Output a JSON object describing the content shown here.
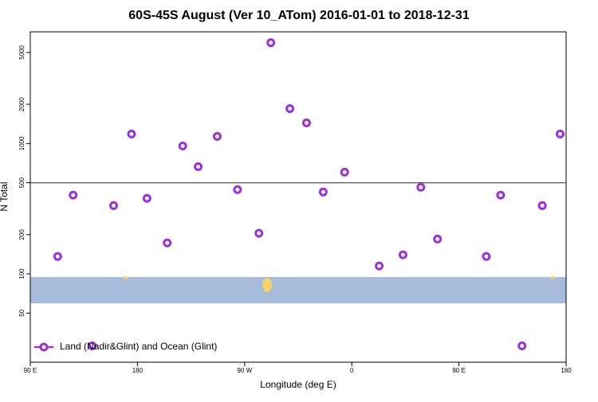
{
  "chart_data": {
    "type": "scatter",
    "title": "60S-45S August (Ver 10_ATom)   2016-01-01 to 2018-12-31",
    "x_label": "Longitude (deg E)",
    "y_label": "N Total",
    "log_y": true,
    "color": "#9b30d9",
    "xlim": [
      90,
      540
    ],
    "xticks": [
      {
        "value": 90,
        "label": "90 E"
      },
      180,
      {
        "value": 270,
        "label": "90 W"
      },
      {
        "value": 360,
        "label": "0"
      },
      {
        "value": 450,
        "label": "90 E"
      },
      {
        "value": 540,
        "label": "180"
      }
    ],
    "ylim": [
      21,
      7200
    ],
    "yticks": [
      50,
      100,
      200,
      500,
      1000,
      2000,
      5000
    ],
    "reference_line": 500,
    "legend": "bottom-left",
    "series": [
      {
        "name": "Land (Nadir&Glint) and Ocean (Glint)",
        "color": "#9b30d9",
        "x": [
          113,
          126,
          142,
          160,
          175,
          188,
          205,
          218,
          231,
          247,
          264,
          282,
          292,
          308,
          322,
          336,
          354,
          383,
          403,
          418,
          432,
          473,
          485,
          503,
          520,
          535
        ],
        "values": [
          136,
          402,
          28,
          334,
          1183,
          380,
          173,
          959,
          665,
          1135,
          443,
          205,
          5940,
          1854,
          1442,
          425,
          603,
          115,
          140,
          462,
          185,
          136,
          402,
          28,
          334,
          1183
        ]
      }
    ]
  }
}
